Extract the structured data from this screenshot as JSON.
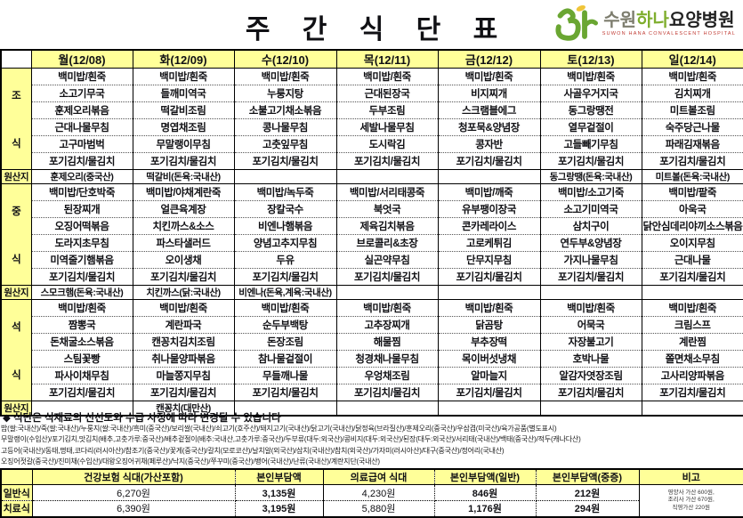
{
  "title": "주 간 식 단 표",
  "logo": {
    "name_prefix": "수원",
    "name_brand": "하나",
    "name_suffix": "요양병원",
    "subtitle": "SUWON HANA CONVALESCENT HOSPITAL",
    "brand_green": "#7fae2e",
    "leaf_yellow": "#f0c53a",
    "subtitle_red": "#c03a33"
  },
  "menu_table": {
    "origin_row_label": "원산지",
    "day_headers": [
      "월(12/08)",
      "화(12/09)",
      "수(12/10)",
      "목(12/11)",
      "금(12/12)",
      "토(12/13)",
      "일(12/14)"
    ],
    "sections": [
      {
        "label": "조식",
        "menus": [
          [
            "백미밥/흰죽",
            "소고기무국",
            "훈제오리볶음",
            "근대나물무침",
            "고구마범벅",
            "포기김치/물김치"
          ],
          [
            "백미밥/흰죽",
            "들깨미역국",
            "떡갈비조림",
            "명엽채조림",
            "무말랭이무침",
            "포기김치/물김치"
          ],
          [
            "백미밥/흰죽",
            "누룽지탕",
            "소불고기채소볶음",
            "콩나물무침",
            "고춧잎무침",
            "포기김치/물김치"
          ],
          [
            "백미밥/흰죽",
            "근대된장국",
            "두부조림",
            "세발나물무침",
            "도시락김",
            "포기김치/물김치"
          ],
          [
            "백미밥/흰죽",
            "비지찌개",
            "스크램블에그",
            "청포묵&양념장",
            "콩자반",
            "포기김치/물김치"
          ],
          [
            "백미밥/흰죽",
            "사골우거지국",
            "동그랑땡전",
            "열무겉절이",
            "고들빼기무침",
            "포기김치/물김치"
          ],
          [
            "백미밥/흰죽",
            "김치찌개",
            "미트볼조림",
            "숙주당근나물",
            "파래김재볶음",
            "포기김치/물김치"
          ]
        ],
        "origins": [
          "훈제오리(중국산)",
          "떡갈비(돈육:국내산)",
          "",
          "",
          "",
          "동그랑땡(돈육:국내산)",
          "미트볼(돈육:국내산)"
        ]
      },
      {
        "label": "중식",
        "menus": [
          [
            "백미밥/단호박죽",
            "된장찌개",
            "오징어떡볶음",
            "도라지초무침",
            "미역줄기햄볶음",
            "포기김치/물김치"
          ],
          [
            "백미밥/야채계란죽",
            "얼큰육계장",
            "치킨까스&소스",
            "파스타샐러드",
            "오이생채",
            "포기김치/물김치"
          ],
          [
            "백미밥/녹두죽",
            "장칼국수",
            "비엔나햄볶음",
            "양념고추지무침",
            "두유",
            "포기김치/물김치"
          ],
          [
            "백미밥/서리태콩죽",
            "북엇국",
            "제육김치볶음",
            "브로콜리&초장",
            "실곤약무침",
            "포기김치/물김치"
          ],
          [
            "백미밥/깨죽",
            "유부팽이장국",
            "콘카레라이스",
            "고로케튀김",
            "단무지무침",
            "포기김치/물김치"
          ],
          [
            "백미밥/소고기죽",
            "소고기미역국",
            "삼치구이",
            "연두부&양념장",
            "가지나물무침",
            "포기김치/물김치"
          ],
          [
            "백미밥/팥죽",
            "아욱국",
            "닭안심데리야끼소스볶음",
            "오이지무침",
            "근대나물",
            "포기김치/물김치"
          ]
        ],
        "origins": [
          "스모크햄(돈육:국내산)",
          "치킨까스(닭:국내산)",
          "비엔나(돈육,계육:국내산)",
          "",
          "",
          "",
          ""
        ]
      },
      {
        "label": "석식",
        "menus": [
          [
            "백미밥/흰죽",
            "짬뽕국",
            "돈채굴소스볶음",
            "스팀꽃빵",
            "파사이채무침",
            "포기김치/물김치"
          ],
          [
            "백미밥/흰죽",
            "계란파국",
            "캔꽁치김치조림",
            "취나물양파볶음",
            "마늘쫑지무침",
            "포기김치/물김치"
          ],
          [
            "백미밥/흰죽",
            "순두부백탕",
            "돈장조림",
            "참나물겉절이",
            "무들깨나물",
            "포기김치/물김치"
          ],
          [
            "백미밥/흰죽",
            "고추장찌개",
            "해물찜",
            "청경채나물무침",
            "우엉채조림",
            "포기김치/물김치"
          ],
          [
            "백미밥/흰죽",
            "닭곰탕",
            "부추장떡",
            "목이버섯냉채",
            "알마늘지",
            "포기김치/물김치"
          ],
          [
            "백미밥/흰죽",
            "어묵국",
            "자장불고기",
            "호박나물",
            "알감자엿장조림",
            "포기김치/물김치"
          ],
          [
            "백미밥/흰죽",
            "크림스프",
            "계란찜",
            "쫄면채소무침",
            "고사리양파볶음",
            "포기김치/물김치"
          ]
        ],
        "origins": [
          "",
          "캔꽁치(대만산)",
          "",
          "",
          "",
          "",
          ""
        ]
      }
    ]
  },
  "notice": "◆ 식단은 식재료의  신선도와 수급 사정에 따라 변경될 수 있습니다",
  "origin_footnotes": [
    "밥(쌀:국내산)/죽(쌀:국내산)/누룽지(쌀:국내산)/흑미(중국산)/보리쌀(국내산)/쇠고기(호주산)/돼지고기(국내산)/닭고기(국내산)/닭정육(브라질산)/훈제오리(중국산)/우삼겹(미국산)/육가공품(별도표시)",
    "무말랭이(수입산)/포기김치,맛김치(배추,고춧가루:중국산)/배추겉절이(배추:국내산,고춧가루:중국산)/두부류(대두:외국산)/콩비지(대두:외국산)/된장(대두:외국산)/서리태(국내산)/백태(중국산)/적두(캐나다산)",
    "고등어(국내산)/동태,명태,코다리(러시아산)/참조기(중국산)/꽃게(중국산)/갈치(모로코산)/날치알(외국산)/삼치(국내산)/참치(외국산)/가자미(러시아산)/대구(중국산)/정어리(국내산)",
    "오징어젓갈(중국산)/진미채(수입산)/대왕오징어귀채(페루산)/낙지(중국산)/쭈꾸미(중국산)/뱅어(국내산)/난류(국내산)/계란지단(국내산)"
  ],
  "price_table": {
    "col_headers": [
      "건강보험 식대(가산포함)",
      "본인부담액",
      "의료급여 식대",
      "본인부담액(일반)",
      "본인부담액(중증)",
      "비고"
    ],
    "rows": [
      {
        "label": "일반식",
        "values": [
          "6,270원",
          "3,135원",
          "4,230원",
          "846원",
          "212원"
        ]
      },
      {
        "label": "치료식",
        "values": [
          "6,390원",
          "3,195원",
          "5,880원",
          "1,176원",
          "294원"
        ]
      }
    ],
    "remark_lines": [
      "영양사 가산 600원,",
      "조리사 가산 670원,",
      "직영가산 220원"
    ]
  },
  "colors": {
    "header_bg": "#ffff99",
    "border": "#000000"
  }
}
